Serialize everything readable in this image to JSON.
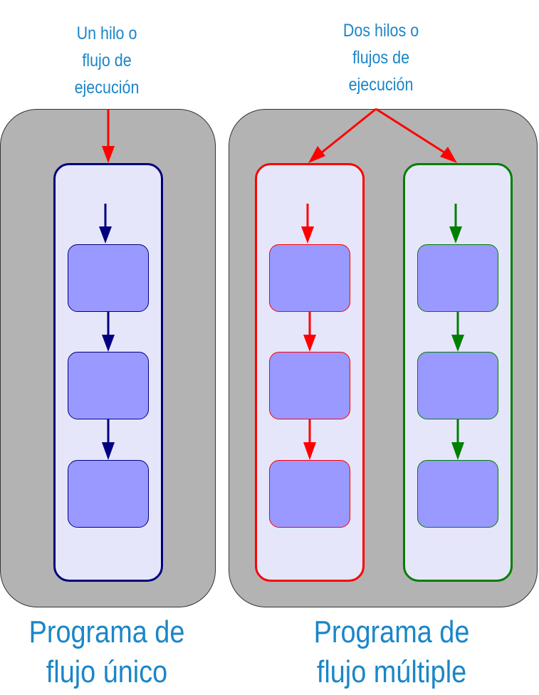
{
  "colors": {
    "label_text": "#1a86c8",
    "panel_fill": "#b3b3b3",
    "thread_fill": "#e6e6fb",
    "task_fill": "#9999ff",
    "single_thread": "#00007f",
    "thread_red": "#ff0000",
    "thread_green": "#007f00"
  },
  "single_program": {
    "thread_label_lines": [
      "Un hilo o",
      "flujo de",
      "ejecución"
    ],
    "title_lines": [
      "Programa de",
      "flujo único"
    ],
    "threads": [
      {
        "name": "single-thread",
        "color": "#00007f",
        "tasks": 3
      }
    ]
  },
  "multi_program": {
    "thread_label_lines": [
      "Dos hilos o",
      "flujos de",
      "ejecución"
    ],
    "title_lines": [
      "Programa de",
      "flujo múltiple"
    ],
    "threads": [
      {
        "name": "red-thread",
        "color": "#ff0000",
        "tasks": 3
      },
      {
        "name": "green-thread",
        "color": "#007f00",
        "tasks": 3
      }
    ]
  }
}
